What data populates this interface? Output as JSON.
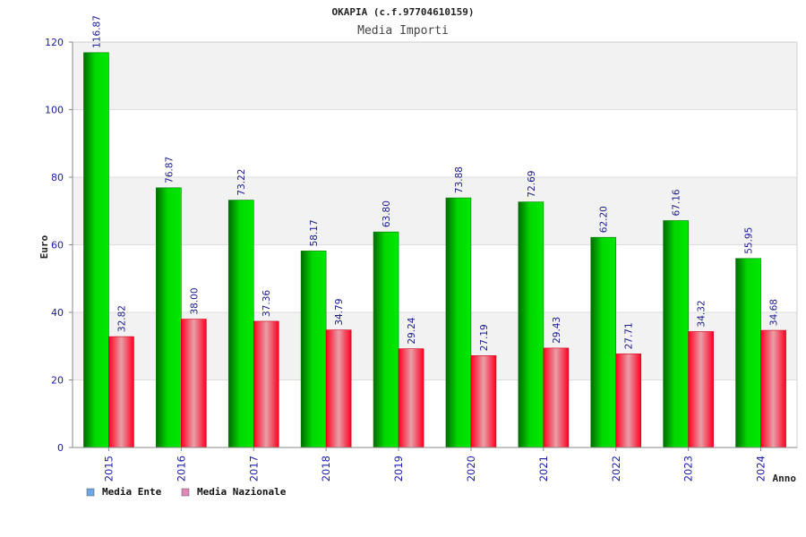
{
  "chart_data": {
    "type": "bar",
    "title": "OKAPIA (c.f.97704610159)",
    "subtitle": "Media Importi",
    "xlabel": "Anno",
    "ylabel": "Euro",
    "ylim": [
      0,
      120
    ],
    "yticks": [
      "0",
      "20",
      "40",
      "60",
      "80",
      "100",
      "120"
    ],
    "grid": true,
    "legend_position": "bottom-left",
    "categories": [
      "2015",
      "2016",
      "2017",
      "2018",
      "2019",
      "2020",
      "2021",
      "2022",
      "2023",
      "2024"
    ],
    "series": [
      {
        "name": "Media Ente",
        "values": [
          116.87,
          76.87,
          73.22,
          58.17,
          63.8,
          73.88,
          72.69,
          62.2,
          67.16,
          55.95
        ],
        "labels": [
          "116.87",
          "76.87",
          "73.22",
          "58.17",
          "63.80",
          "73.88",
          "72.69",
          "62.20",
          "67.16",
          "55.95"
        ],
        "color": "#00c000",
        "legend_color": "#6aa8e8"
      },
      {
        "name": "Media Nazionale",
        "values": [
          32.82,
          38.0,
          37.36,
          34.79,
          29.24,
          27.19,
          29.43,
          27.71,
          34.32,
          34.68
        ],
        "labels": [
          "32.82",
          "38.00",
          "37.36",
          "34.79",
          "29.24",
          "27.19",
          "29.43",
          "27.71",
          "34.32",
          "34.68"
        ],
        "color": "#ff0020",
        "legend_color": "#e088b8"
      }
    ]
  }
}
